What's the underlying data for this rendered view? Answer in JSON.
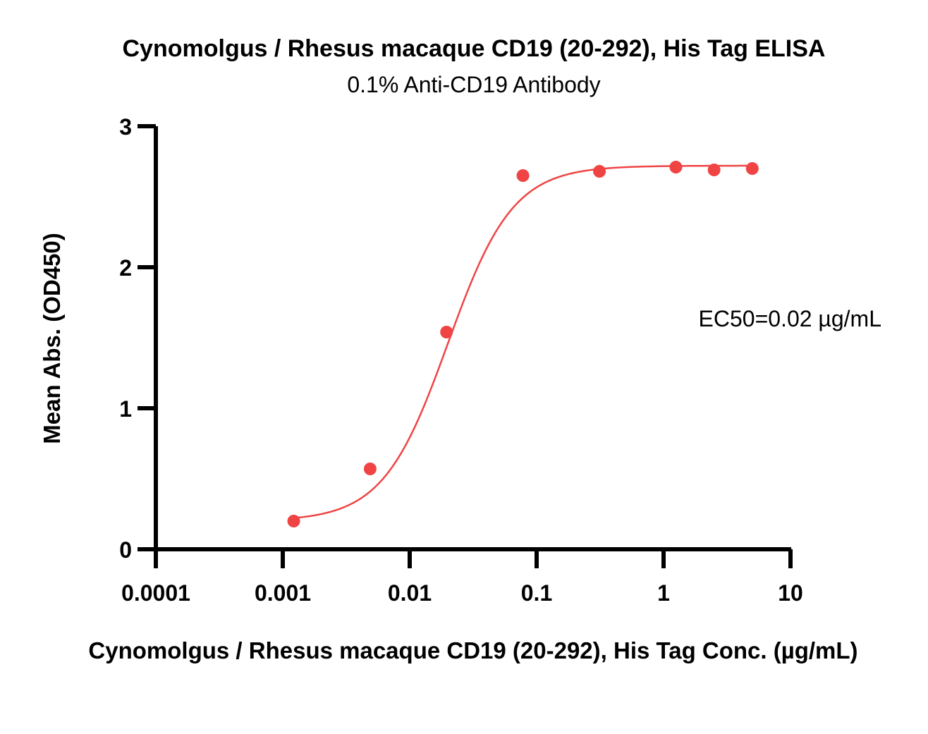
{
  "chart_data": {
    "type": "scatter",
    "title": "Cynomolgus / Rhesus macaque CD19 (20-292), His Tag ELISA",
    "subtitle": "0.1% Anti-CD19 Antibody",
    "xlabel": "Cynomolgus / Rhesus macaque CD19 (20-292), His Tag Conc. (µg/mL)",
    "ylabel": "Mean Abs. (OD450)",
    "x_scale": "log",
    "xlim": [
      0.0001,
      10
    ],
    "ylim": [
      0,
      3
    ],
    "x_ticks": [
      "0.0001",
      "0.001",
      "0.01",
      "0.1",
      "1",
      "10"
    ],
    "y_ticks": [
      "0",
      "1",
      "2",
      "3"
    ],
    "grid": false,
    "series": [
      {
        "x": [
          0.00122,
          0.00488,
          0.0195,
          0.078,
          0.3125,
          1.25,
          2.5,
          5
        ],
        "y": [
          0.2,
          0.57,
          1.54,
          2.65,
          2.68,
          2.71,
          2.69,
          2.7
        ],
        "color": "#f04444",
        "fit": {
          "model": "4PL",
          "bottom": 0.2,
          "top": 2.72,
          "ec50": 0.02,
          "hill": 1.7
        }
      }
    ],
    "annotations": [
      {
        "text": "EC50=0.02 µg/mL"
      }
    ]
  }
}
